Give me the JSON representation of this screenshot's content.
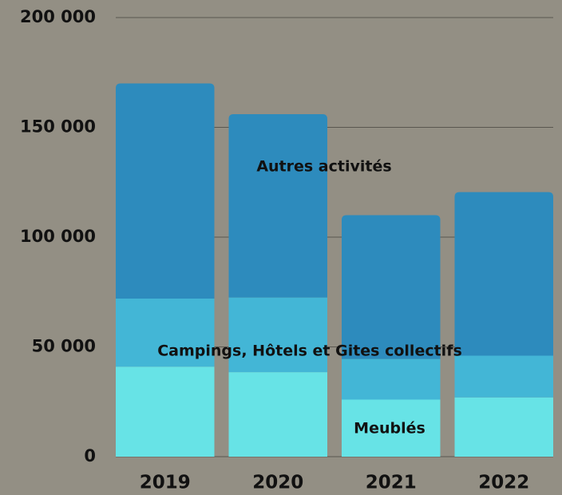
{
  "chart_data": {
    "type": "stacked_bar",
    "categories": [
      "2019",
      "2020",
      "2021",
      "2022"
    ],
    "series": [
      {
        "name": "Meublés",
        "color": "#67e3e6",
        "values": [
          41000,
          38500,
          26000,
          27000
        ]
      },
      {
        "name": "Campings, Hôtels et Gites collectifs",
        "color": "#43b6d6",
        "values": [
          31000,
          34000,
          18500,
          19000
        ]
      },
      {
        "name": "Autres activités",
        "color": "#2d8bbd",
        "values": [
          98000,
          83500,
          65500,
          74500
        ]
      }
    ],
    "ylim": [
      0,
      200000
    ],
    "yticks": [
      0,
      {
        "value": 50000,
        "label": "50 000"
      },
      {
        "value": 100000,
        "label": "100 000"
      },
      {
        "value": 150000,
        "label": "150 000"
      },
      {
        "value": 200000,
        "label": "200 000"
      }
    ],
    "grid": true
  }
}
